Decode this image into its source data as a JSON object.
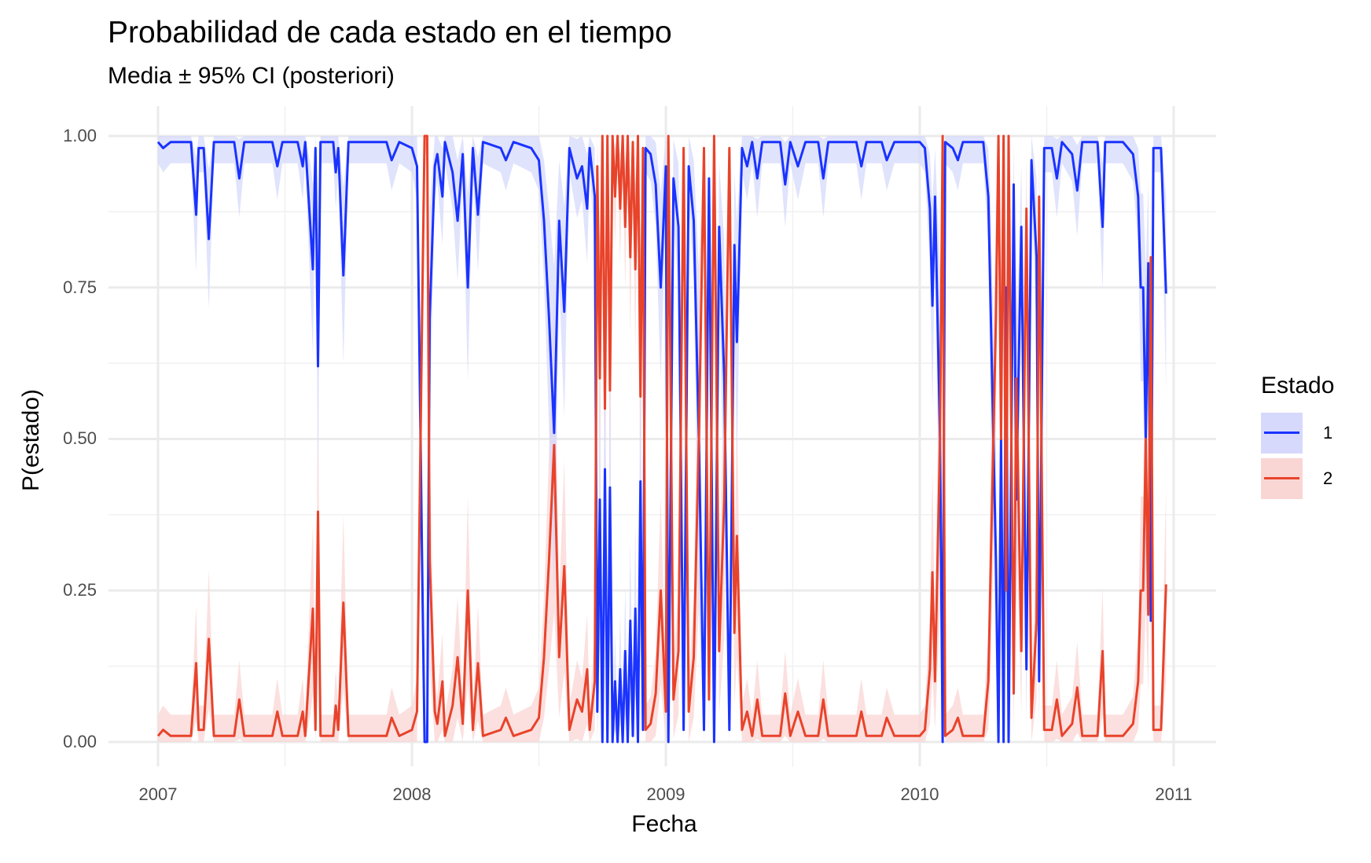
{
  "title": "Probabilidad de cada estado en el tiempo",
  "subtitle": "Media ± 95% CI (posteriori)",
  "x_axis": {
    "label": "Fecha",
    "ticks": [
      "2007",
      "2008",
      "2009",
      "2010",
      "2011"
    ]
  },
  "y_axis": {
    "label": "P(estado)",
    "ticks": [
      "0.00",
      "0.25",
      "0.50",
      "0.75",
      "1.00"
    ]
  },
  "legend": {
    "title": "Estado",
    "items": [
      {
        "label": "1",
        "line_color": "#1a33ff",
        "fill_color": "#d6d9fb"
      },
      {
        "label": "2",
        "line_color": "#e8432b",
        "fill_color": "#f9d6d4"
      }
    ]
  },
  "chart_data": {
    "type": "line",
    "title": "Probabilidad de cada estado en el tiempo",
    "subtitle": "Media ± 95% CI (posteriori)",
    "xlabel": "Fecha",
    "ylabel": "P(estado)",
    "xlim": [
      2006.9,
      2011.18
    ],
    "ylim": [
      -0.035,
      1.035
    ],
    "x_ticks": [
      2007,
      2008,
      2009,
      2010,
      2011
    ],
    "y_ticks": [
      0,
      0.25,
      0.5,
      0.75,
      1.0
    ],
    "grid": true,
    "legend_position": "right",
    "ribbon": "95% CI",
    "series": [
      {
        "name": "1",
        "color": "#1a33ff",
        "note": "P(estado=1); keypoints [decimal_year, mean]",
        "points": [
          [
            2007.0,
            0.99
          ],
          [
            2007.02,
            0.98
          ],
          [
            2007.05,
            0.99
          ],
          [
            2007.13,
            0.99
          ],
          [
            2007.15,
            0.87
          ],
          [
            2007.16,
            0.98
          ],
          [
            2007.18,
            0.98
          ],
          [
            2007.2,
            0.83
          ],
          [
            2007.22,
            0.99
          ],
          [
            2007.3,
            0.99
          ],
          [
            2007.32,
            0.93
          ],
          [
            2007.34,
            0.99
          ],
          [
            2007.45,
            0.99
          ],
          [
            2007.47,
            0.95
          ],
          [
            2007.49,
            0.99
          ],
          [
            2007.55,
            0.99
          ],
          [
            2007.57,
            0.95
          ],
          [
            2007.58,
            0.99
          ],
          [
            2007.6,
            0.85
          ],
          [
            2007.61,
            0.78
          ],
          [
            2007.62,
            0.98
          ],
          [
            2007.63,
            0.62
          ],
          [
            2007.64,
            0.99
          ],
          [
            2007.69,
            0.99
          ],
          [
            2007.7,
            0.94
          ],
          [
            2007.71,
            0.98
          ],
          [
            2007.73,
            0.77
          ],
          [
            2007.75,
            0.99
          ],
          [
            2007.9,
            0.99
          ],
          [
            2007.92,
            0.96
          ],
          [
            2007.95,
            0.99
          ],
          [
            2008.0,
            0.98
          ],
          [
            2008.02,
            0.95
          ],
          [
            2008.04,
            0.3
          ],
          [
            2008.05,
            0.0
          ],
          [
            2008.06,
            0.0
          ],
          [
            2008.07,
            0.7
          ],
          [
            2008.09,
            0.95
          ],
          [
            2008.1,
            0.97
          ],
          [
            2008.12,
            0.9
          ],
          [
            2008.13,
            0.99
          ],
          [
            2008.16,
            0.94
          ],
          [
            2008.18,
            0.86
          ],
          [
            2008.2,
            0.97
          ],
          [
            2008.22,
            0.75
          ],
          [
            2008.24,
            0.98
          ],
          [
            2008.26,
            0.87
          ],
          [
            2008.28,
            0.99
          ],
          [
            2008.35,
            0.98
          ],
          [
            2008.37,
            0.96
          ],
          [
            2008.4,
            0.99
          ],
          [
            2008.47,
            0.98
          ],
          [
            2008.5,
            0.96
          ],
          [
            2008.52,
            0.86
          ],
          [
            2008.54,
            0.7
          ],
          [
            2008.56,
            0.51
          ],
          [
            2008.58,
            0.86
          ],
          [
            2008.6,
            0.71
          ],
          [
            2008.62,
            0.98
          ],
          [
            2008.65,
            0.93
          ],
          [
            2008.67,
            0.95
          ],
          [
            2008.69,
            0.88
          ],
          [
            2008.7,
            0.98
          ],
          [
            2008.72,
            0.9
          ],
          [
            2008.73,
            0.05
          ],
          [
            2008.74,
            0.4
          ],
          [
            2008.75,
            0.0
          ],
          [
            2008.76,
            0.45
          ],
          [
            2008.77,
            0.0
          ],
          [
            2008.78,
            0.42
          ],
          [
            2008.79,
            0.0
          ],
          [
            2008.8,
            0.1
          ],
          [
            2008.81,
            0.0
          ],
          [
            2008.82,
            0.12
          ],
          [
            2008.83,
            0.0
          ],
          [
            2008.84,
            0.15
          ],
          [
            2008.85,
            0.0
          ],
          [
            2008.86,
            0.2
          ],
          [
            2008.87,
            0.01
          ],
          [
            2008.88,
            0.22
          ],
          [
            2008.89,
            0.0
          ],
          [
            2008.9,
            0.43
          ],
          [
            2008.91,
            0.02
          ],
          [
            2008.92,
            0.98
          ],
          [
            2008.94,
            0.97
          ],
          [
            2008.96,
            0.92
          ],
          [
            2008.98,
            0.75
          ],
          [
            2009.0,
            0.95
          ],
          [
            2009.01,
            0.0
          ],
          [
            2009.03,
            0.93
          ],
          [
            2009.05,
            0.85
          ],
          [
            2009.07,
            0.02
          ],
          [
            2009.09,
            0.95
          ],
          [
            2009.11,
            0.86
          ],
          [
            2009.13,
            0.5
          ],
          [
            2009.15,
            0.02
          ],
          [
            2009.17,
            0.93
          ],
          [
            2009.19,
            0.0
          ],
          [
            2009.21,
            0.85
          ],
          [
            2009.23,
            0.6
          ],
          [
            2009.25,
            0.02
          ],
          [
            2009.27,
            0.82
          ],
          [
            2009.28,
            0.66
          ],
          [
            2009.3,
            0.98
          ],
          [
            2009.32,
            0.95
          ],
          [
            2009.34,
            0.99
          ],
          [
            2009.36,
            0.93
          ],
          [
            2009.38,
            0.99
          ],
          [
            2009.45,
            0.99
          ],
          [
            2009.47,
            0.92
          ],
          [
            2009.49,
            0.99
          ],
          [
            2009.52,
            0.95
          ],
          [
            2009.55,
            0.99
          ],
          [
            2009.6,
            0.99
          ],
          [
            2009.62,
            0.93
          ],
          [
            2009.64,
            0.99
          ],
          [
            2009.75,
            0.99
          ],
          [
            2009.77,
            0.95
          ],
          [
            2009.79,
            0.99
          ],
          [
            2009.85,
            0.99
          ],
          [
            2009.87,
            0.96
          ],
          [
            2009.9,
            0.99
          ],
          [
            2010.0,
            0.99
          ],
          [
            2010.02,
            0.98
          ],
          [
            2010.04,
            0.88
          ],
          [
            2010.05,
            0.72
          ],
          [
            2010.06,
            0.9
          ],
          [
            2010.08,
            0.5
          ],
          [
            2010.09,
            0.0
          ],
          [
            2010.1,
            0.99
          ],
          [
            2010.13,
            0.98
          ],
          [
            2010.15,
            0.96
          ],
          [
            2010.17,
            0.99
          ],
          [
            2010.25,
            0.99
          ],
          [
            2010.27,
            0.9
          ],
          [
            2010.28,
            0.7
          ],
          [
            2010.3,
            0.3
          ],
          [
            2010.31,
            0.0
          ],
          [
            2010.32,
            0.5
          ],
          [
            2010.33,
            0.0
          ],
          [
            2010.34,
            0.75
          ],
          [
            2010.35,
            0.0
          ],
          [
            2010.37,
            0.92
          ],
          [
            2010.38,
            0.4
          ],
          [
            2010.4,
            0.85
          ],
          [
            2010.42,
            0.12
          ],
          [
            2010.44,
            0.96
          ],
          [
            2010.46,
            0.8
          ],
          [
            2010.47,
            0.1
          ],
          [
            2010.49,
            0.98
          ],
          [
            2010.52,
            0.98
          ],
          [
            2010.54,
            0.93
          ],
          [
            2010.56,
            0.99
          ],
          [
            2010.6,
            0.97
          ],
          [
            2010.62,
            0.91
          ],
          [
            2010.64,
            0.99
          ],
          [
            2010.7,
            0.99
          ],
          [
            2010.72,
            0.85
          ],
          [
            2010.73,
            0.99
          ],
          [
            2010.8,
            0.99
          ],
          [
            2010.84,
            0.97
          ],
          [
            2010.86,
            0.9
          ],
          [
            2010.87,
            0.75
          ],
          [
            2010.88,
            0.75
          ],
          [
            2010.89,
            0.5
          ],
          [
            2010.9,
            0.79
          ],
          [
            2010.91,
            0.2
          ],
          [
            2010.92,
            0.98
          ],
          [
            2010.95,
            0.98
          ],
          [
            2010.97,
            0.74
          ]
        ]
      },
      {
        "name": "2",
        "color": "#e8432b",
        "note": "P(estado=2) = 1 - P(estado=1)"
      }
    ]
  }
}
